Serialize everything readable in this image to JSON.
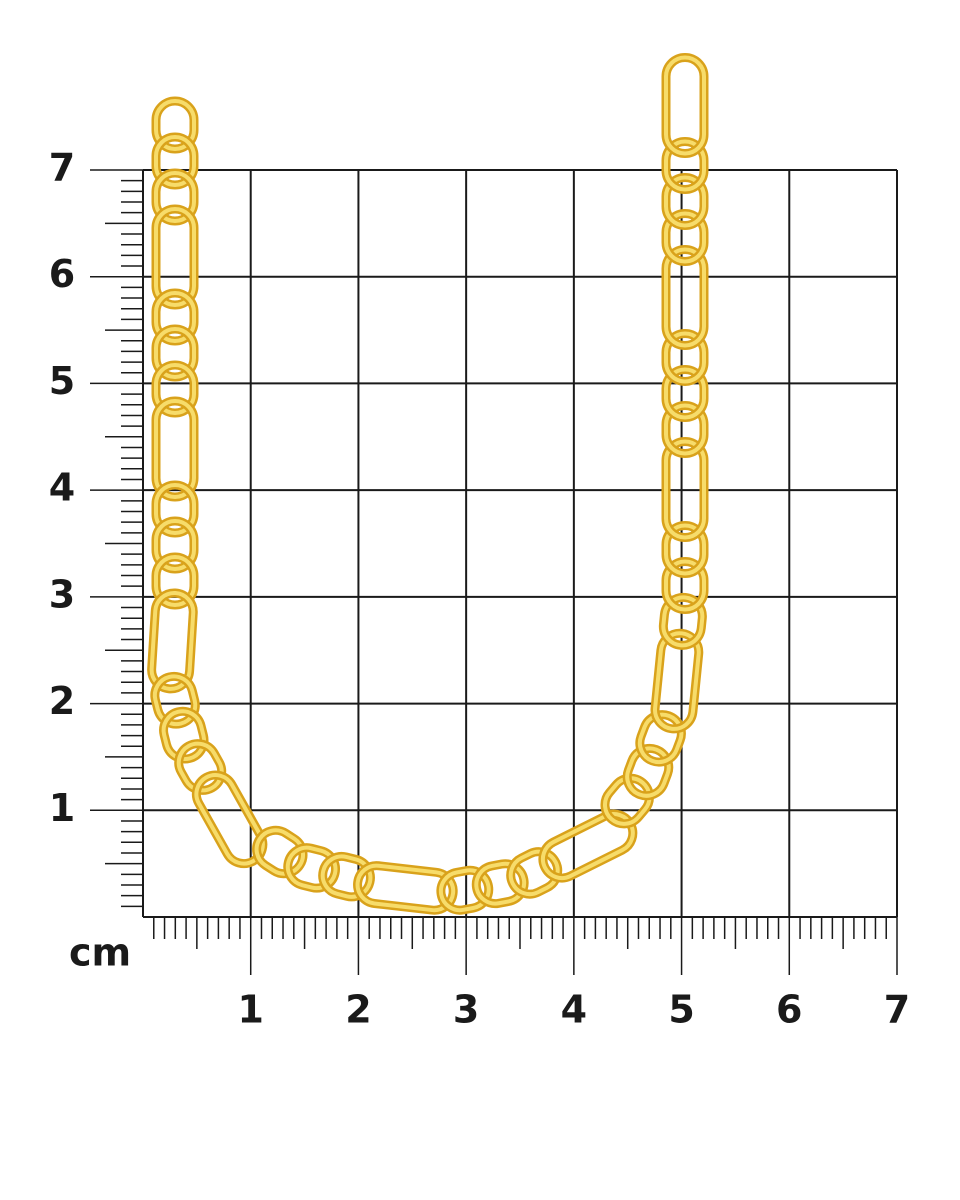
{
  "unit": "cm",
  "x_labels": [
    1,
    2,
    3,
    4,
    5,
    6,
    7
  ],
  "y_labels": [
    1,
    2,
    3,
    4,
    5,
    6,
    7
  ]
}
